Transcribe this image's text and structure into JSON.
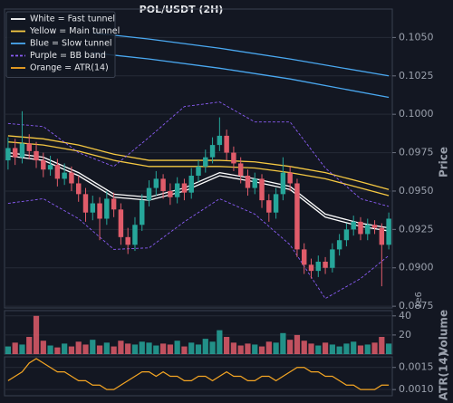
{
  "chart_data": [
    {
      "type": "candlestick",
      "title": "POL/USDT (2H)",
      "ylabel": "Price",
      "ylim": [
        0.08739,
        0.10638
      ],
      "yticks": [
        {
          "value": 0.0875,
          "label": "0.0875"
        },
        {
          "value": 0.09,
          "label": "0.0900"
        },
        {
          "value": 0.0925,
          "label": "0.0925"
        },
        {
          "value": 0.095,
          "label": "0.0950"
        },
        {
          "value": 0.0975,
          "label": "0.0975"
        },
        {
          "value": 0.1,
          "label": "0.1000"
        },
        {
          "value": 0.1025,
          "label": "0.1025"
        },
        {
          "value": 0.105,
          "label": "0.1050"
        }
      ],
      "grid": true,
      "legend": "upper left",
      "up_color": "#26a69a",
      "down_color": "#e05c6a",
      "open": [
        0.097,
        0.0978,
        0.0972,
        0.0981,
        0.0976,
        0.097,
        0.0964,
        0.0967,
        0.0958,
        0.0962,
        0.0955,
        0.0948,
        0.0936,
        0.0942,
        0.0932,
        0.0945,
        0.0938,
        0.092,
        0.0915,
        0.0928,
        0.0944,
        0.0952,
        0.0958,
        0.095,
        0.0946,
        0.0955,
        0.0949,
        0.096,
        0.0966,
        0.0972,
        0.098,
        0.0986,
        0.0975,
        0.0968,
        0.096,
        0.0952,
        0.0958,
        0.0944,
        0.0936,
        0.0948,
        0.0962,
        0.0955,
        0.0912,
        0.0902,
        0.0898,
        0.0904,
        0.09,
        0.0912,
        0.0918,
        0.0925,
        0.093,
        0.0922,
        0.0928,
        0.0926,
        0.0915
      ],
      "high": [
        0.0985,
        0.0984,
        0.1002,
        0.0987,
        0.0982,
        0.0975,
        0.0973,
        0.0971,
        0.0968,
        0.0966,
        0.096,
        0.0952,
        0.0947,
        0.0946,
        0.095,
        0.0949,
        0.0942,
        0.0926,
        0.0933,
        0.0948,
        0.0957,
        0.0963,
        0.0961,
        0.0955,
        0.0959,
        0.0958,
        0.0965,
        0.097,
        0.0977,
        0.0985,
        0.0998,
        0.099,
        0.0979,
        0.0972,
        0.0964,
        0.0962,
        0.0961,
        0.0948,
        0.0952,
        0.0972,
        0.0966,
        0.0958,
        0.0916,
        0.0906,
        0.0908,
        0.0907,
        0.0916,
        0.0922,
        0.0929,
        0.0934,
        0.0933,
        0.0932,
        0.0931,
        0.0929,
        0.0936
      ],
      "low": [
        0.0964,
        0.0967,
        0.0968,
        0.0971,
        0.0965,
        0.0959,
        0.096,
        0.0953,
        0.0954,
        0.095,
        0.0943,
        0.093,
        0.0931,
        0.0918,
        0.0928,
        0.0933,
        0.0915,
        0.0909,
        0.0911,
        0.0924,
        0.094,
        0.0947,
        0.0945,
        0.0941,
        0.0942,
        0.0944,
        0.0945,
        0.0956,
        0.0962,
        0.0968,
        0.0976,
        0.097,
        0.0963,
        0.0955,
        0.0947,
        0.0948,
        0.0939,
        0.093,
        0.0932,
        0.0944,
        0.095,
        0.0907,
        0.0896,
        0.0893,
        0.0894,
        0.0896,
        0.0897,
        0.0908,
        0.0914,
        0.0921,
        0.0918,
        0.0918,
        0.0922,
        0.0888,
        0.0912
      ],
      "close": [
        0.0978,
        0.0972,
        0.0981,
        0.0976,
        0.097,
        0.0964,
        0.0967,
        0.0958,
        0.0962,
        0.0955,
        0.0948,
        0.0936,
        0.0942,
        0.0932,
        0.0945,
        0.0938,
        0.092,
        0.0915,
        0.0928,
        0.0944,
        0.0952,
        0.0958,
        0.095,
        0.0946,
        0.0955,
        0.0949,
        0.096,
        0.0966,
        0.0972,
        0.098,
        0.0986,
        0.0975,
        0.0968,
        0.096,
        0.0952,
        0.0958,
        0.0944,
        0.0936,
        0.0948,
        0.0962,
        0.0955,
        0.0912,
        0.0902,
        0.0898,
        0.0904,
        0.09,
        0.0912,
        0.0918,
        0.0925,
        0.093,
        0.0922,
        0.0928,
        0.0926,
        0.0915,
        0.0932
      ],
      "overlays": [
        {
          "name": "White = Fast tunnel",
          "color": "#ffffff",
          "style": "solid",
          "x": [
            0,
            5,
            10,
            15,
            20,
            25,
            30,
            35,
            40,
            45,
            50,
            54
          ],
          "lines": [
            [
              0.0975,
              0.0972,
              0.0962,
              0.0948,
              0.0946,
              0.0952,
              0.0962,
              0.0958,
              0.0953,
              0.0935,
              0.0929,
              0.0926
            ],
            [
              0.0973,
              0.097,
              0.096,
              0.0946,
              0.0944,
              0.095,
              0.096,
              0.0956,
              0.0951,
              0.0933,
              0.0927,
              0.0924
            ]
          ]
        },
        {
          "name": "Yellow = Main tunnel",
          "color": "#f5c842",
          "style": "solid",
          "x": [
            0,
            5,
            10,
            15,
            20,
            25,
            30,
            35,
            40,
            45,
            50,
            54
          ],
          "lines": [
            [
              0.0986,
              0.0984,
              0.098,
              0.0974,
              0.097,
              0.097,
              0.097,
              0.0969,
              0.0966,
              0.0962,
              0.0956,
              0.0951
            ],
            [
              0.0982,
              0.098,
              0.0976,
              0.097,
              0.0966,
              0.0966,
              0.0966,
              0.0965,
              0.0962,
              0.0958,
              0.0952,
              0.0947
            ]
          ]
        },
        {
          "name": "Blue = Slow tunnel",
          "color": "#4aa8f0",
          "style": "solid",
          "x": [
            12,
            20,
            30,
            40,
            54
          ],
          "lines": [
            [
              0.1053,
              0.1049,
              0.1043,
              0.1036,
              0.1025
            ],
            [
              0.104,
              0.1036,
              0.103,
              0.1023,
              0.1011
            ]
          ]
        },
        {
          "name": "Purple = BB band",
          "color": "#8a5cf5",
          "style": "dashed",
          "x": [
            0,
            5,
            10,
            15,
            20,
            25,
            30,
            35,
            40,
            45,
            50,
            54
          ],
          "lines": [
            [
              0.0994,
              0.0992,
              0.0975,
              0.0966,
              0.0985,
              0.1005,
              0.1008,
              0.0995,
              0.0995,
              0.0965,
              0.0945,
              0.094
            ],
            [
              0.0942,
              0.0945,
              0.0932,
              0.0912,
              0.0913,
              0.093,
              0.0945,
              0.0935,
              0.0915,
              0.088,
              0.0893,
              0.0908
            ]
          ]
        }
      ]
    },
    {
      "type": "bar",
      "ylabel": "Volume",
      "offset_text": "1e6",
      "ylim": [
        0,
        45.5
      ],
      "yticks": [
        20,
        40
      ],
      "grid": true,
      "values": [
        8,
        12,
        10,
        18,
        40,
        14,
        9,
        7,
        11,
        8,
        13,
        10,
        15,
        9,
        12,
        8,
        14,
        11,
        10,
        13,
        12,
        9,
        11,
        10,
        14,
        8,
        12,
        10,
        16,
        13,
        25,
        18,
        12,
        9,
        11,
        10,
        8,
        13,
        12,
        22,
        15,
        20,
        14,
        11,
        9,
        12,
        10,
        8,
        11,
        13,
        9,
        10,
        12,
        18,
        11
      ]
    },
    {
      "type": "line",
      "ylabel": "ATR(14)",
      "ylim": [
        0.00086,
        0.00174
      ],
      "yticks": [
        {
          "value": 0.001,
          "label": "0.0010"
        },
        {
          "value": 0.0015,
          "label": "0.0015"
        }
      ],
      "grid": true,
      "series": [
        {
          "name": "Orange = ATR(14)",
          "color": "#f5a623",
          "values": [
            0.0012,
            0.0013,
            0.0014,
            0.0016,
            0.0017,
            0.0016,
            0.0015,
            0.0014,
            0.0014,
            0.0013,
            0.0012,
            0.0012,
            0.0011,
            0.0011,
            0.001,
            0.001,
            0.0011,
            0.0012,
            0.0013,
            0.0014,
            0.0014,
            0.0013,
            0.0014,
            0.0013,
            0.0013,
            0.0012,
            0.0012,
            0.0013,
            0.0013,
            0.0012,
            0.0013,
            0.0014,
            0.0013,
            0.0013,
            0.0012,
            0.0012,
            0.0013,
            0.0013,
            0.0012,
            0.0013,
            0.0014,
            0.0015,
            0.0015,
            0.0014,
            0.0014,
            0.0013,
            0.0013,
            0.0012,
            0.0011,
            0.0011,
            0.001,
            0.001,
            0.001,
            0.0011,
            0.0011
          ]
        }
      ]
    }
  ]
}
